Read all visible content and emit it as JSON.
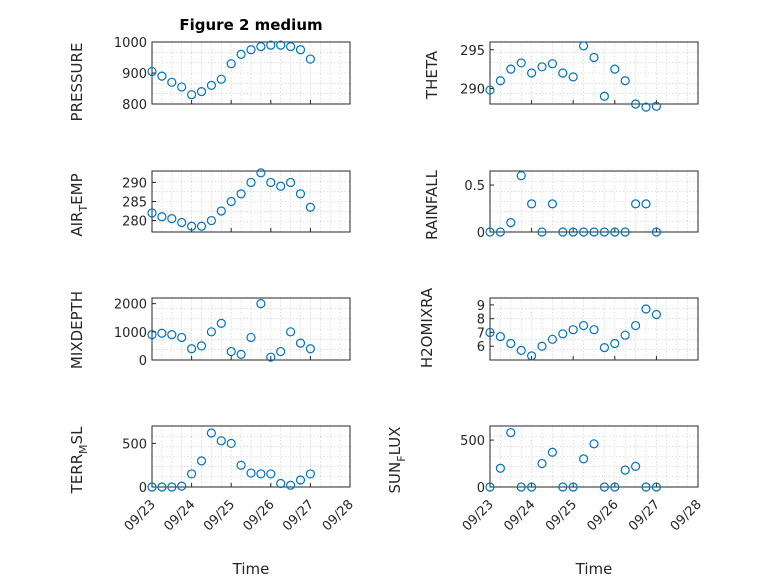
{
  "figure_title": "Figure 2 medium",
  "x_label": "Time",
  "colors": {
    "marker": "#0072BD",
    "axis": "#262626",
    "grid": "#c8c8c8"
  },
  "chart_data": [
    {
      "type": "scatter",
      "ylabel": "PRESSURE",
      "ylim": [
        800,
        1000
      ],
      "yticks": [
        800,
        900,
        1000
      ],
      "xlim": [
        "09/23",
        "09/28"
      ],
      "xticks": [],
      "grid": true,
      "x": [
        "09/23 00:00",
        "09/23 06:00",
        "09/23 12:00",
        "09/23 18:00",
        "09/24 00:00",
        "09/24 06:00",
        "09/24 12:00",
        "09/24 18:00",
        "09/25 00:00",
        "09/25 06:00",
        "09/25 12:00",
        "09/25 18:00",
        "09/26 00:00",
        "09/26 06:00",
        "09/26 12:00",
        "09/26 18:00",
        "09/27 00:00"
      ],
      "y": [
        905,
        890,
        870,
        855,
        830,
        840,
        860,
        880,
        930,
        960,
        975,
        985,
        990,
        990,
        985,
        975,
        945
      ]
    },
    {
      "type": "scatter",
      "ylabel": "THETA",
      "ylim": [
        288,
        296
      ],
      "yticks": [
        290,
        295
      ],
      "xlim": [
        "09/23",
        "09/28"
      ],
      "xticks": [],
      "grid": true,
      "x": [
        "09/23 00:00",
        "09/23 06:00",
        "09/23 12:00",
        "09/23 18:00",
        "09/24 00:00",
        "09/24 06:00",
        "09/24 12:00",
        "09/24 18:00",
        "09/25 00:00",
        "09/25 06:00",
        "09/25 12:00",
        "09/25 18:00",
        "09/26 00:00",
        "09/26 06:00",
        "09/26 12:00",
        "09/26 18:00",
        "09/27 00:00"
      ],
      "y": [
        289.8,
        291.0,
        292.5,
        293.3,
        292.0,
        292.8,
        293.2,
        292.0,
        291.5,
        295.5,
        294.0,
        289.0,
        292.5,
        291.0,
        288.0,
        287.6,
        287.7
      ]
    },
    {
      "type": "scatter",
      "ylabel": "AIR_TEMP",
      "ylim": [
        277,
        293
      ],
      "yticks": [
        280,
        285,
        290
      ],
      "xlim": [
        "09/23",
        "09/28"
      ],
      "xticks": [],
      "grid": true,
      "x": [
        "09/23 00:00",
        "09/23 06:00",
        "09/23 12:00",
        "09/23 18:00",
        "09/24 00:00",
        "09/24 06:00",
        "09/24 12:00",
        "09/24 18:00",
        "09/25 00:00",
        "09/25 06:00",
        "09/25 12:00",
        "09/25 18:00",
        "09/26 00:00",
        "09/26 06:00",
        "09/26 12:00",
        "09/26 18:00",
        "09/27 00:00"
      ],
      "y": [
        282,
        281,
        280.5,
        279.5,
        278.5,
        278.5,
        280,
        282.5,
        285,
        287,
        290,
        292.5,
        290,
        289,
        290,
        287,
        283.5
      ]
    },
    {
      "type": "scatter",
      "ylabel": "RAINFALL",
      "ylim": [
        0,
        0.65
      ],
      "yticks": [
        0,
        0.5
      ],
      "xlim": [
        "09/23",
        "09/28"
      ],
      "xticks": [],
      "grid": true,
      "x": [
        "09/23 00:00",
        "09/23 06:00",
        "09/23 12:00",
        "09/23 18:00",
        "09/24 00:00",
        "09/24 06:00",
        "09/24 12:00",
        "09/24 18:00",
        "09/25 00:00",
        "09/25 06:00",
        "09/25 12:00",
        "09/25 18:00",
        "09/26 00:00",
        "09/26 06:00",
        "09/26 12:00",
        "09/26 18:00",
        "09/27 00:00"
      ],
      "y": [
        0,
        0,
        0.1,
        0.6,
        0.3,
        0,
        0.3,
        0,
        0,
        0,
        0,
        0,
        0,
        0,
        0.3,
        0.3,
        0
      ]
    },
    {
      "type": "scatter",
      "ylabel": "MIXDEPTH",
      "ylim": [
        0,
        2200
      ],
      "yticks": [
        0,
        1000,
        2000
      ],
      "xlim": [
        "09/23",
        "09/28"
      ],
      "xticks": [],
      "grid": true,
      "x": [
        "09/23 00:00",
        "09/23 06:00",
        "09/23 12:00",
        "09/23 18:00",
        "09/24 00:00",
        "09/24 06:00",
        "09/24 12:00",
        "09/24 18:00",
        "09/25 00:00",
        "09/25 06:00",
        "09/25 12:00",
        "09/25 18:00",
        "09/26 00:00",
        "09/26 06:00",
        "09/26 12:00",
        "09/26 18:00",
        "09/27 00:00"
      ],
      "y": [
        900,
        950,
        900,
        800,
        400,
        500,
        1000,
        1300,
        300,
        200,
        800,
        2000,
        100,
        300,
        1000,
        600,
        400
      ]
    },
    {
      "type": "scatter",
      "ylabel": "H2OMIXRA",
      "ylim": [
        5,
        9.5
      ],
      "yticks": [
        6,
        7,
        8,
        9
      ],
      "xlim": [
        "09/23",
        "09/28"
      ],
      "xticks": [],
      "grid": true,
      "x": [
        "09/23 00:00",
        "09/23 06:00",
        "09/23 12:00",
        "09/23 18:00",
        "09/24 00:00",
        "09/24 06:00",
        "09/24 12:00",
        "09/24 18:00",
        "09/25 00:00",
        "09/25 06:00",
        "09/25 12:00",
        "09/25 18:00",
        "09/26 00:00",
        "09/26 06:00",
        "09/26 12:00",
        "09/26 18:00",
        "09/27 00:00"
      ],
      "y": [
        7.0,
        6.7,
        6.2,
        5.7,
        5.3,
        6.0,
        6.5,
        6.9,
        7.2,
        7.5,
        7.2,
        5.9,
        6.2,
        6.8,
        7.5,
        8.7,
        8.3
      ]
    },
    {
      "type": "scatter",
      "ylabel": "TERR_MSL",
      "ylim": [
        0,
        700
      ],
      "yticks": [
        0,
        500
      ],
      "xlim": [
        "09/23",
        "09/28"
      ],
      "xticks": [
        "09/23",
        "09/24",
        "09/25",
        "09/26",
        "09/27",
        "09/28"
      ],
      "grid": true,
      "x": [
        "09/23 00:00",
        "09/23 06:00",
        "09/23 12:00",
        "09/23 18:00",
        "09/24 00:00",
        "09/24 06:00",
        "09/24 12:00",
        "09/24 18:00",
        "09/25 00:00",
        "09/25 06:00",
        "09/25 12:00",
        "09/25 18:00",
        "09/26 00:00",
        "09/26 06:00",
        "09/26 12:00",
        "09/26 18:00",
        "09/27 00:00"
      ],
      "y": [
        0,
        0,
        0,
        10,
        150,
        300,
        620,
        530,
        500,
        250,
        160,
        150,
        150,
        40,
        20,
        80,
        150
      ]
    },
    {
      "type": "scatter",
      "ylabel": "SUN_FLUX",
      "ylim": [
        0,
        650
      ],
      "yticks": [
        0,
        500
      ],
      "xlim": [
        "09/23",
        "09/28"
      ],
      "xticks": [
        "09/23",
        "09/24",
        "09/25",
        "09/26",
        "09/27",
        "09/28"
      ],
      "grid": true,
      "x": [
        "09/23 00:00",
        "09/23 06:00",
        "09/23 12:00",
        "09/23 18:00",
        "09/24 00:00",
        "09/24 06:00",
        "09/24 12:00",
        "09/24 18:00",
        "09/25 00:00",
        "09/25 06:00",
        "09/25 12:00",
        "09/25 18:00",
        "09/26 00:00",
        "09/26 06:00",
        "09/26 12:00",
        "09/26 18:00",
        "09/27 00:00"
      ],
      "y": [
        0,
        200,
        580,
        0,
        0,
        250,
        370,
        0,
        0,
        300,
        460,
        0,
        0,
        180,
        220,
        0,
        0
      ]
    }
  ]
}
